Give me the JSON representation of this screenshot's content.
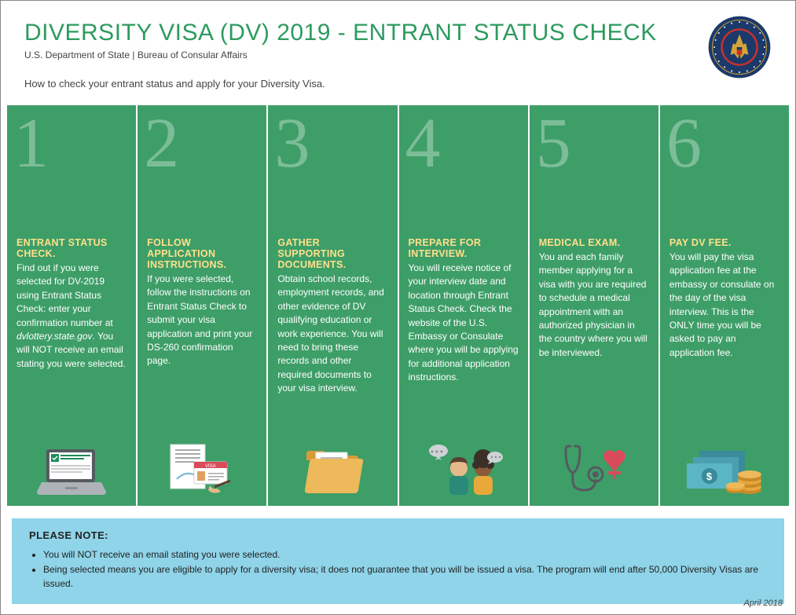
{
  "colors": {
    "title_color": "#2d9b5f",
    "step_bg": "#3e9e68",
    "step_number_color": "rgba(255,255,255,0.32)",
    "step_title_color": "#ffe08a",
    "step_text_color": "#ffffff",
    "note_bg": "#8fd4e9",
    "seal_outer": "#1b3a6b",
    "seal_inner": "#c9302c",
    "seal_gold": "#d4a437"
  },
  "header": {
    "title": "DIVERSITY VISA (DV) 2019 - ENTRANT STATUS CHECK",
    "subtitle": "U.S. Department of State | Bureau of Consular Affairs",
    "intro": "How to check your entrant status and apply for your Diversity Visa."
  },
  "steps": [
    {
      "num": "1",
      "title": "ENTRANT STATUS CHECK.",
      "text_html": "Find out if you were selected for DV-2019 using Entrant Status Check: enter your confirmation number at <span class='ital'>dvlottery.state.gov</span>. You will NOT receive an email stating you were selected.",
      "icon": "laptop"
    },
    {
      "num": "2",
      "title": "FOLLOW APPLICATION INSTRUCTIONS.",
      "text_html": "If you were selected, follow the instructions on Entrant Status Check to submit your visa application and print your DS-260 confirmation page.",
      "icon": "visa-doc"
    },
    {
      "num": "3",
      "title": "GATHER SUPPORTING DOCUMENTS.",
      "text_html": "Obtain school records, employment records, and other evidence of DV qualifying education or work experience. You will need to bring these records and other required documents to your visa interview.",
      "icon": "folder"
    },
    {
      "num": "4",
      "title": "PREPARE FOR INTERVIEW.",
      "text_html": "You will receive notice of your interview date and location through Entrant Status Check. Check the website of the U.S. Embassy or Consulate where you will be applying for additional application instructions.",
      "icon": "people"
    },
    {
      "num": "5",
      "title": "MEDICAL EXAM.",
      "text_html": "You and each family member applying for a visa with you are required to schedule a medical appointment with an authorized physician in the country where you will be interviewed.",
      "icon": "medical"
    },
    {
      "num": "6",
      "title": "PAY DV FEE.",
      "text_html": "You will pay the visa application fee at the embassy or consulate on the day of the visa interview. This is the ONLY time you will be asked to pay an application fee.",
      "icon": "money"
    }
  ],
  "note": {
    "title": "PLEASE NOTE:",
    "items": [
      "You will NOT receive an email stating you were selected.",
      "Being selected means you are eligible to apply for a diversity visa; it does not guarantee that you will be issued a visa. The program will end after 50,000 Diversity Visas are issued."
    ]
  },
  "date": "April 2018"
}
